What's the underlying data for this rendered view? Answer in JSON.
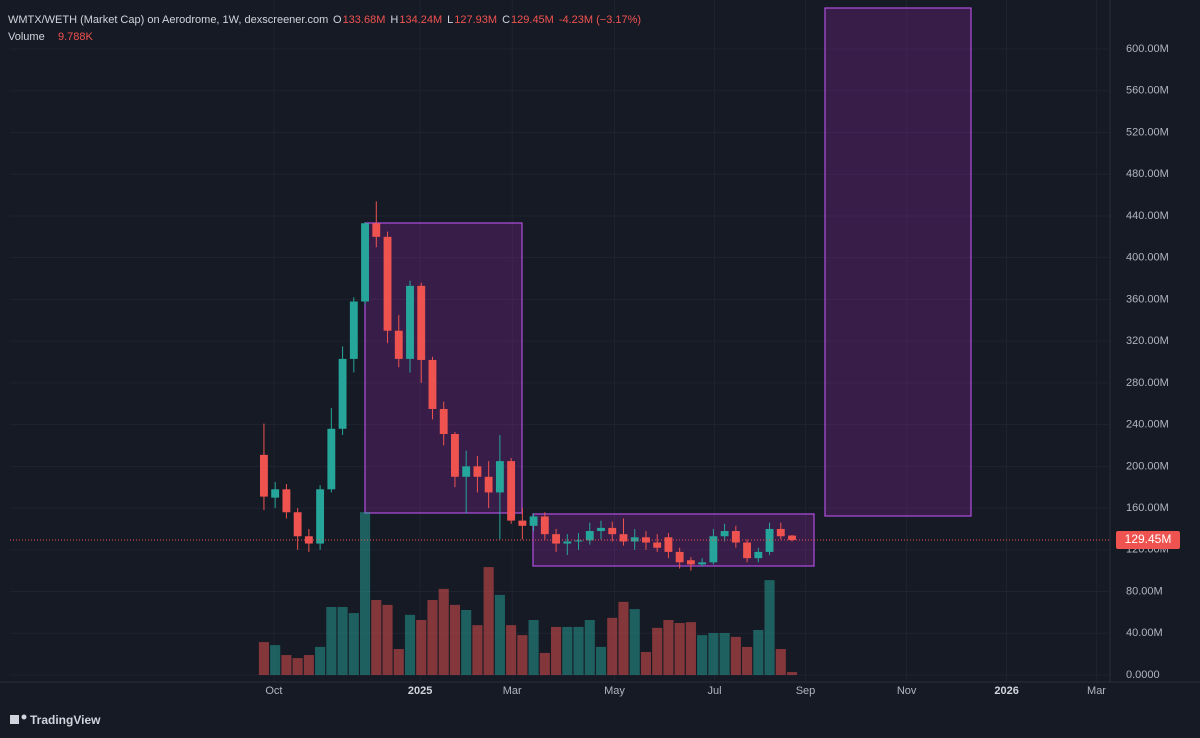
{
  "chart_data": {
    "type": "candlestick",
    "legend": {
      "title": "WMTX/WETH (Market Cap) on Aerodrome, 1W, dexscreener.com",
      "items": [
        {
          "key": "O",
          "text": "133.68M"
        },
        {
          "key": "H",
          "text": "134.24M"
        },
        {
          "key": "L",
          "text": "127.93M"
        },
        {
          "key": "C",
          "text": "129.45M"
        }
      ],
      "change": "-4.23M (−3.17%)",
      "volume_name": "Volume",
      "volume_text": "9.788K"
    },
    "brand": "TradingView",
    "x": [
      0,
      1,
      2,
      3,
      4,
      5,
      6,
      7,
      8,
      9,
      10,
      11,
      12,
      13,
      14,
      15,
      16,
      17,
      18,
      19,
      20,
      21,
      22,
      23,
      24,
      25,
      26,
      27,
      28,
      29,
      30,
      31,
      32,
      33,
      34,
      35,
      36,
      37,
      38,
      39,
      40,
      41,
      42,
      43,
      44,
      45,
      46,
      47
    ],
    "open": [
      211,
      170,
      178,
      156,
      133,
      126,
      178,
      236,
      303,
      358,
      433,
      420,
      330,
      303,
      373,
      302,
      255,
      231,
      190,
      200,
      190,
      175,
      205,
      148,
      143,
      152,
      135,
      126,
      128,
      129,
      138,
      141,
      135,
      128,
      132,
      127,
      132,
      118,
      110,
      106,
      108,
      133,
      138,
      127,
      112,
      118,
      140,
      133.68
    ],
    "high": [
      241,
      185,
      183,
      160,
      140,
      182,
      256,
      315,
      362,
      434,
      454,
      425,
      345,
      378,
      376,
      305,
      262,
      233,
      215,
      210,
      205,
      230,
      208,
      160,
      155,
      156,
      140,
      135,
      136,
      146,
      148,
      147,
      150,
      140,
      138,
      135,
      136,
      122,
      113,
      112,
      140,
      145,
      143,
      130,
      122,
      146,
      146,
      134.24
    ],
    "low": [
      158,
      160,
      150,
      120,
      118,
      120,
      175,
      230,
      290,
      355,
      410,
      318,
      295,
      290,
      280,
      245,
      220,
      180,
      155,
      175,
      160,
      130,
      145,
      130,
      138,
      130,
      118,
      115,
      120,
      125,
      130,
      128,
      124,
      120,
      120,
      118,
      112,
      102,
      100,
      104,
      106,
      128,
      122,
      108,
      108,
      115,
      130,
      127.93
    ],
    "close": [
      171,
      178,
      156,
      133,
      126,
      178,
      236,
      303,
      358,
      433,
      420,
      330,
      303,
      373,
      302,
      255,
      231,
      190,
      200,
      190,
      175,
      205,
      148,
      143,
      152,
      135,
      126,
      128,
      129,
      138,
      141,
      135,
      128,
      132,
      127,
      122,
      118,
      108,
      106,
      108,
      133,
      138,
      127,
      112,
      118,
      140,
      133,
      129.45
    ],
    "volume": [
      109,
      99,
      66,
      56,
      66,
      93,
      225,
      225,
      205,
      539,
      248,
      232,
      86,
      199,
      182,
      248,
      285,
      232,
      215,
      165,
      357,
      265,
      165,
      132,
      182,
      73,
      159,
      159,
      159,
      182,
      93,
      189,
      242,
      218,
      76,
      156,
      182,
      172,
      175,
      132,
      139,
      139,
      126,
      93,
      149,
      314,
      86,
      9.788
    ],
    "up_color": "#26a69a",
    "down_color": "#ef5350",
    "xlim": [
      -22.6,
      75.3
    ],
    "xticks": [
      {
        "value": 0.89,
        "label": "Oct"
      },
      {
        "value": 13.9,
        "label": "2025"
      },
      {
        "value": 22.1,
        "label": "Mar"
      },
      {
        "value": 31.2,
        "label": "May"
      },
      {
        "value": 40.1,
        "label": "Jul"
      },
      {
        "value": 48.2,
        "label": "Sep"
      },
      {
        "value": 57.2,
        "label": "Nov"
      },
      {
        "value": 66.1,
        "label": "2026"
      },
      {
        "value": 74.1,
        "label": "Mar"
      }
    ],
    "ylim": [
      -6.7,
      637.4
    ],
    "yticks": [
      {
        "value": 0,
        "label": "0.0000"
      },
      {
        "value": 40,
        "label": "40.00M"
      },
      {
        "value": 80,
        "label": "80.00M"
      },
      {
        "value": 120,
        "label": "120.00M"
      },
      {
        "value": 160,
        "label": "160.00M"
      },
      {
        "value": 200,
        "label": "200.00M"
      },
      {
        "value": 240,
        "label": "240.00M"
      },
      {
        "value": 280,
        "label": "280.00M"
      },
      {
        "value": 320,
        "label": "320.00M"
      },
      {
        "value": 360,
        "label": "360.00M"
      },
      {
        "value": 400,
        "label": "400.00M"
      },
      {
        "value": 440,
        "label": "440.00M"
      },
      {
        "value": 480,
        "label": "480.00M"
      },
      {
        "value": 520,
        "label": "520.00M"
      },
      {
        "value": 560,
        "label": "560.00M"
      },
      {
        "value": 600,
        "label": "600.00M"
      }
    ],
    "vlim": [
      0,
      2200
    ],
    "grid": true
  }
}
